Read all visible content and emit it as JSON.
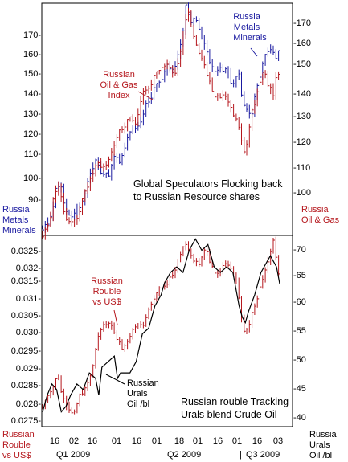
{
  "colors": {
    "blue": "#1a1aa0",
    "red": "#b5171d",
    "black": "#000000",
    "frame": "#000000"
  },
  "top": {
    "left_ticks": [
      "170-",
      "160-",
      "150-",
      "140-",
      "130-",
      "120-",
      "110-",
      "100-",
      "90-"
    ],
    "right_ticks": [
      "-170",
      "-160",
      "-150",
      "-140",
      "-130",
      "-120",
      "-110",
      "-100"
    ],
    "annotation": [
      "Global Speculators Flocking back",
      "to Russian Resource shares"
    ],
    "label_metals": [
      "Russia",
      "Metals",
      "Minerals"
    ],
    "label_oilgas": [
      "Russian",
      "Oil & Gas",
      "Index"
    ],
    "left_axis_label": [
      "Russia",
      "Metals",
      "Minerals"
    ],
    "right_axis_label": [
      "Russia",
      "Oil & Gas"
    ]
  },
  "bottom": {
    "left_ticks": [
      "0.0325-",
      "0.032-",
      "0.0315-",
      "0.031-",
      "0.0305-",
      "0.030-",
      "0.0295-",
      "0.029-",
      "0.0285-",
      "0.028-",
      "0.0275-"
    ],
    "right_ticks": [
      "-70",
      "-65",
      "-60",
      "-55",
      "-50",
      "-45",
      "-40"
    ],
    "annotation": [
      "Russian rouble Tracking",
      "Urals blend Crude Oil"
    ],
    "label_rouble": [
      "Russian",
      "Rouble",
      "vs US$"
    ],
    "label_urals": [
      "Russian",
      "Urals",
      "Oil /bl"
    ],
    "left_axis_label": [
      "Russian",
      "Rouble",
      "vs US$"
    ],
    "right_axis_label": [
      "Russia",
      "Urals",
      "Oil /bl"
    ]
  },
  "xaxis": {
    "day_labels": [
      "16",
      "02",
      "16",
      "01",
      "16",
      "01",
      "04",
      "18",
      "01",
      "16",
      "01",
      "16",
      "01",
      "16",
      "03"
    ],
    "quarters": [
      "Q1 2009",
      "|",
      "Q2 2009",
      "|",
      "Q3 2009"
    ]
  },
  "chart_data": [
    {
      "type": "line",
      "title": "Global Speculators Flocking back to Russian Resource shares",
      "x_range": [
        "2009-01-01",
        "2009-07-10"
      ],
      "series": [
        {
          "name": "Russia Metals Minerals",
          "axis": "left",
          "ylim": [
            82,
            178
          ],
          "values": [
            [
              0,
              85
            ],
            [
              4,
              88
            ],
            [
              8,
              97
            ],
            [
              9,
              104
            ],
            [
              12,
              101
            ],
            [
              15,
              92
            ],
            [
              18,
              90
            ],
            [
              22,
              93
            ],
            [
              26,
              96
            ],
            [
              30,
              108
            ],
            [
              34,
              112
            ],
            [
              38,
              108
            ],
            [
              42,
              106
            ],
            [
              46,
              114
            ],
            [
              50,
              112
            ],
            [
              54,
              122
            ],
            [
              58,
              126
            ],
            [
              62,
              128
            ],
            [
              66,
              136
            ],
            [
              70,
              140
            ],
            [
              72,
              143
            ],
            [
              76,
              146
            ],
            [
              80,
              152
            ],
            [
              84,
              150
            ],
            [
              86,
              156
            ],
            [
              90,
              166
            ],
            [
              92,
              178
            ],
            [
              95,
              170
            ],
            [
              98,
              172
            ],
            [
              100,
              169
            ],
            [
              103,
              162
            ],
            [
              106,
              156
            ],
            [
              110,
              149
            ],
            [
              114,
              152
            ],
            [
              118,
              150
            ],
            [
              122,
              144
            ],
            [
              126,
              150
            ],
            [
              128,
              138
            ],
            [
              130,
              136
            ],
            [
              132,
              132
            ],
            [
              134,
              132
            ],
            [
              136,
              140
            ],
            [
              140,
              150
            ],
            [
              143,
              157
            ],
            [
              146,
              160
            ],
            [
              149,
              156
            ],
            [
              152,
              158
            ]
          ]
        },
        {
          "name": "Russian Oil & Gas Index",
          "axis": "right",
          "ylim": [
            86,
            176
          ],
          "values": [
            [
              0,
              86
            ],
            [
              4,
              90
            ],
            [
              8,
              103
            ],
            [
              10,
              106
            ],
            [
              13,
              96
            ],
            [
              16,
              92
            ],
            [
              20,
              90
            ],
            [
              24,
              96
            ],
            [
              28,
              104
            ],
            [
              32,
              110
            ],
            [
              36,
              114
            ],
            [
              40,
              112
            ],
            [
              44,
              118
            ],
            [
              48,
              125
            ],
            [
              52,
              128
            ],
            [
              56,
              131
            ],
            [
              60,
              130
            ],
            [
              64,
              142
            ],
            [
              68,
              143
            ],
            [
              72,
              148
            ],
            [
              76,
              150
            ],
            [
              80,
              153
            ],
            [
              84,
              148
            ],
            [
              88,
              156
            ],
            [
              91,
              168
            ],
            [
              93,
              175
            ],
            [
              96,
              165
            ],
            [
              100,
              158
            ],
            [
              104,
              151
            ],
            [
              108,
              144
            ],
            [
              112,
              139
            ],
            [
              116,
              141
            ],
            [
              120,
              136
            ],
            [
              124,
              131
            ],
            [
              126,
              128
            ],
            [
              128,
              120
            ],
            [
              130,
              118
            ],
            [
              132,
              126
            ],
            [
              134,
              133
            ],
            [
              138,
              142
            ],
            [
              142,
              150
            ],
            [
              145,
              144
            ],
            [
              148,
              140
            ],
            [
              150,
              150
            ],
            [
              152,
              148
            ]
          ]
        }
      ]
    },
    {
      "type": "line",
      "title": "Russian rouble Tracking Urals blend Crude Oil",
      "x_range": [
        "2009-01-01",
        "2009-07-10"
      ],
      "series": [
        {
          "name": "Russian Rouble vs US$",
          "axis": "left",
          "ylim": [
            0.0274,
            0.0331
          ],
          "values": [
            [
              0,
              0.028
            ],
            [
              4,
              0.0283
            ],
            [
              8,
              0.0287
            ],
            [
              10,
              0.0289
            ],
            [
              13,
              0.0282
            ],
            [
              16,
              0.0279
            ],
            [
              20,
              0.0278
            ],
            [
              24,
              0.0283
            ],
            [
              28,
              0.0286
            ],
            [
              32,
              0.0291
            ],
            [
              36,
              0.0302
            ],
            [
              40,
              0.0305
            ],
            [
              44,
              0.0304
            ],
            [
              48,
              0.03
            ],
            [
              52,
              0.0297
            ],
            [
              56,
              0.0301
            ],
            [
              60,
              0.0304
            ],
            [
              64,
              0.0304
            ],
            [
              68,
              0.0309
            ],
            [
              72,
              0.0313
            ],
            [
              76,
              0.0316
            ],
            [
              80,
              0.0317
            ],
            [
              84,
              0.032
            ],
            [
              88,
              0.0325
            ],
            [
              92,
              0.0329
            ],
            [
              96,
              0.0324
            ],
            [
              100,
              0.0322
            ],
            [
              104,
              0.0327
            ],
            [
              108,
              0.0323
            ],
            [
              112,
              0.0319
            ],
            [
              116,
              0.0323
            ],
            [
              120,
              0.0322
            ],
            [
              124,
              0.0318
            ],
            [
              126,
              0.0312
            ],
            [
              128,
              0.0304
            ],
            [
              130,
              0.0301
            ],
            [
              134,
              0.0307
            ],
            [
              138,
              0.0313
            ],
            [
              142,
              0.032
            ],
            [
              146,
              0.0326
            ],
            [
              148,
              0.033
            ],
            [
              150,
              0.0323
            ],
            [
              152,
              0.0318
            ]
          ]
        },
        {
          "name": "Russian Urals Oil /bl",
          "axis": "right",
          "ylim": [
            38.5,
            72.5
          ],
          "values": [
            [
              0,
              41
            ],
            [
              3,
              44
            ],
            [
              6,
              46
            ],
            [
              9,
              45
            ],
            [
              12,
              41
            ],
            [
              15,
              42
            ],
            [
              18,
              44
            ],
            [
              22,
              46
            ],
            [
              26,
              45
            ],
            [
              30,
              48
            ],
            [
              34,
              47
            ],
            [
              36,
              44
            ],
            [
              38,
              49
            ],
            [
              42,
              50
            ],
            [
              46,
              51
            ],
            [
              48,
              47
            ],
            [
              50,
              48
            ],
            [
              54,
              48
            ],
            [
              56,
              48
            ],
            [
              60,
              50
            ],
            [
              64,
              55
            ],
            [
              68,
              56
            ],
            [
              72,
              60
            ],
            [
              76,
              62
            ],
            [
              78,
              64
            ],
            [
              82,
              66
            ],
            [
              86,
              67
            ],
            [
              90,
              66
            ],
            [
              94,
              70
            ],
            [
              98,
              72
            ],
            [
              102,
              70
            ],
            [
              106,
              71
            ],
            [
              110,
              67
            ],
            [
              114,
              66
            ],
            [
              118,
              67
            ],
            [
              122,
              66
            ],
            [
              126,
              60
            ],
            [
              128,
              58
            ],
            [
              130,
              57
            ],
            [
              132,
              59
            ],
            [
              136,
              62
            ],
            [
              140,
              66
            ],
            [
              144,
              68
            ],
            [
              146,
              69
            ],
            [
              148,
              68
            ],
            [
              150,
              67
            ],
            [
              152,
              64
            ]
          ]
        }
      ]
    }
  ]
}
